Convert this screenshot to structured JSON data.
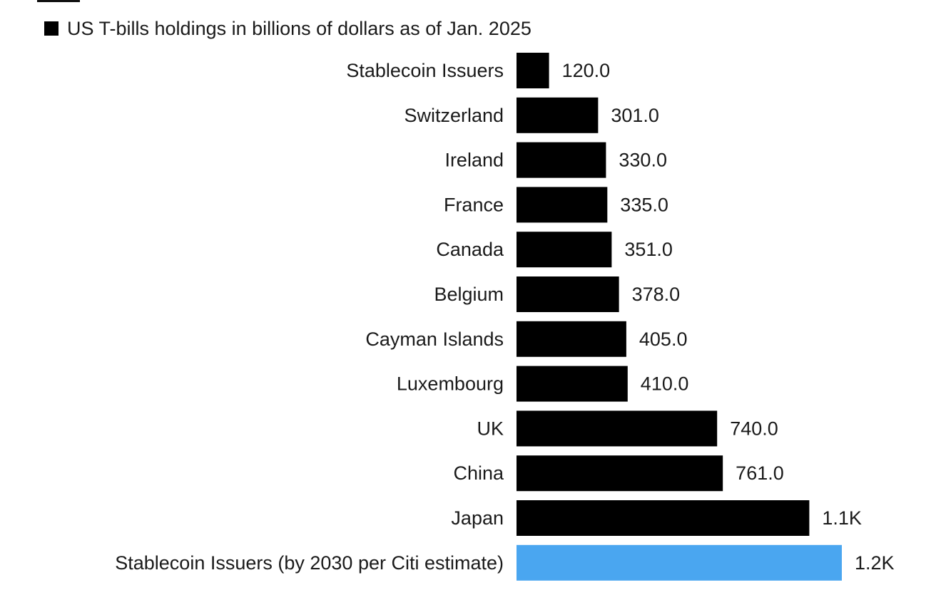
{
  "chart_data": {
    "type": "bar",
    "orientation": "horizontal",
    "title": "",
    "xlabel": "",
    "ylabel": "",
    "legend": {
      "label": "US T-bills holdings in billions of dollars as of Jan. 2025",
      "placement": "top-left",
      "color": "#000000"
    },
    "categories": [
      "Stablecoin Issuers",
      "Switzerland",
      "Ireland",
      "France",
      "Canada",
      "Belgium",
      "Cayman Islands",
      "Luxembourg",
      "UK",
      "China",
      "Japan",
      "Stablecoin Issuers (by 2030 per Citi estimate)"
    ],
    "values": [
      120,
      301,
      330,
      335,
      351,
      378,
      405,
      410,
      740,
      761,
      1080,
      1200
    ],
    "value_labels": [
      "120.0",
      "301.0",
      "330.0",
      "335.0",
      "351.0",
      "378.0",
      "405.0",
      "410.0",
      "740.0",
      "761.0",
      "1.1K",
      "1.2K"
    ],
    "colors": [
      "#000000",
      "#000000",
      "#000000",
      "#000000",
      "#000000",
      "#000000",
      "#000000",
      "#000000",
      "#000000",
      "#000000",
      "#000000",
      "#4aa6f0"
    ],
    "xlim": [
      0,
      1200
    ],
    "grid": false
  }
}
